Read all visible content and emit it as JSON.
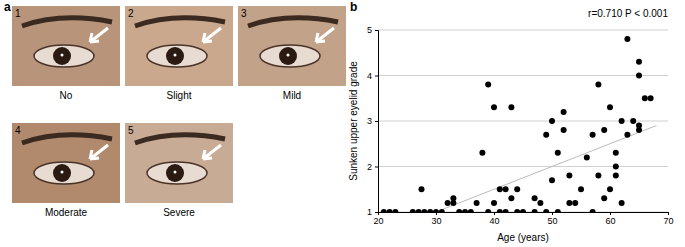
{
  "panel_labels": [
    "a",
    "b"
  ],
  "panel_a": {
    "photos": [
      {
        "number": 1,
        "caption": "No"
      },
      {
        "number": 2,
        "caption": "Slight"
      },
      {
        "number": 3,
        "caption": "Mild"
      },
      {
        "number": 4,
        "caption": "Moderate"
      },
      {
        "number": 5,
        "caption": "Severe"
      }
    ]
  },
  "chart_data": {
    "type": "scatter",
    "annotation": "r=0.710 P < 0.001",
    "x_label": "Age (years)",
    "y_label": "Sunken upper eyelid grade",
    "x": [
      21,
      22,
      23,
      26,
      27,
      27.5,
      28,
      29,
      30,
      31,
      32,
      33,
      33,
      34,
      35,
      36,
      37,
      38,
      39,
      39,
      40,
      40,
      41,
      41,
      42,
      42,
      43,
      43,
      44,
      44,
      45,
      47,
      47,
      48,
      49,
      49,
      50,
      50,
      51,
      51,
      52,
      52,
      53,
      53,
      54,
      55,
      56,
      57,
      57,
      58,
      58,
      59,
      59,
      60,
      60,
      61,
      61,
      61,
      62,
      62,
      63,
      63,
      64,
      65,
      65,
      65,
      65,
      66,
      67
    ],
    "values": [
      1,
      1,
      1,
      1,
      1,
      1.5,
      1,
      1,
      1,
      1,
      1.2,
      1.3,
      1.2,
      1,
      1,
      1,
      1.2,
      2.3,
      3.8,
      1,
      1.2,
      3.3,
      1,
      1.5,
      1.5,
      1,
      3.3,
      1.3,
      1,
      1.5,
      1,
      1,
      1.3,
      1.2,
      1,
      2.7,
      3.0,
      1.7,
      1,
      2.3,
      2.8,
      3.2,
      1.2,
      1.8,
      1.2,
      1.5,
      2.2,
      1,
      2.7,
      3.8,
      1.8,
      1.3,
      2.8,
      3.3,
      1.5,
      2.3,
      2.0,
      1.8,
      1.2,
      3.0,
      2.7,
      4.8,
      3.0,
      2.8,
      4.0,
      4.3,
      2.9,
      3.5,
      3.5
    ],
    "color": "#000000",
    "trendline": {
      "x": [
        30,
        68
      ],
      "y": [
        1.0,
        2.9
      ],
      "color": "#bbbbbb"
    },
    "xlim": [
      20,
      70
    ],
    "xticks": [
      20,
      30,
      40,
      50,
      60,
      70
    ],
    "ylim": [
      1,
      5
    ],
    "yticks": [
      1,
      2,
      3,
      4,
      5
    ],
    "grid": "y"
  }
}
